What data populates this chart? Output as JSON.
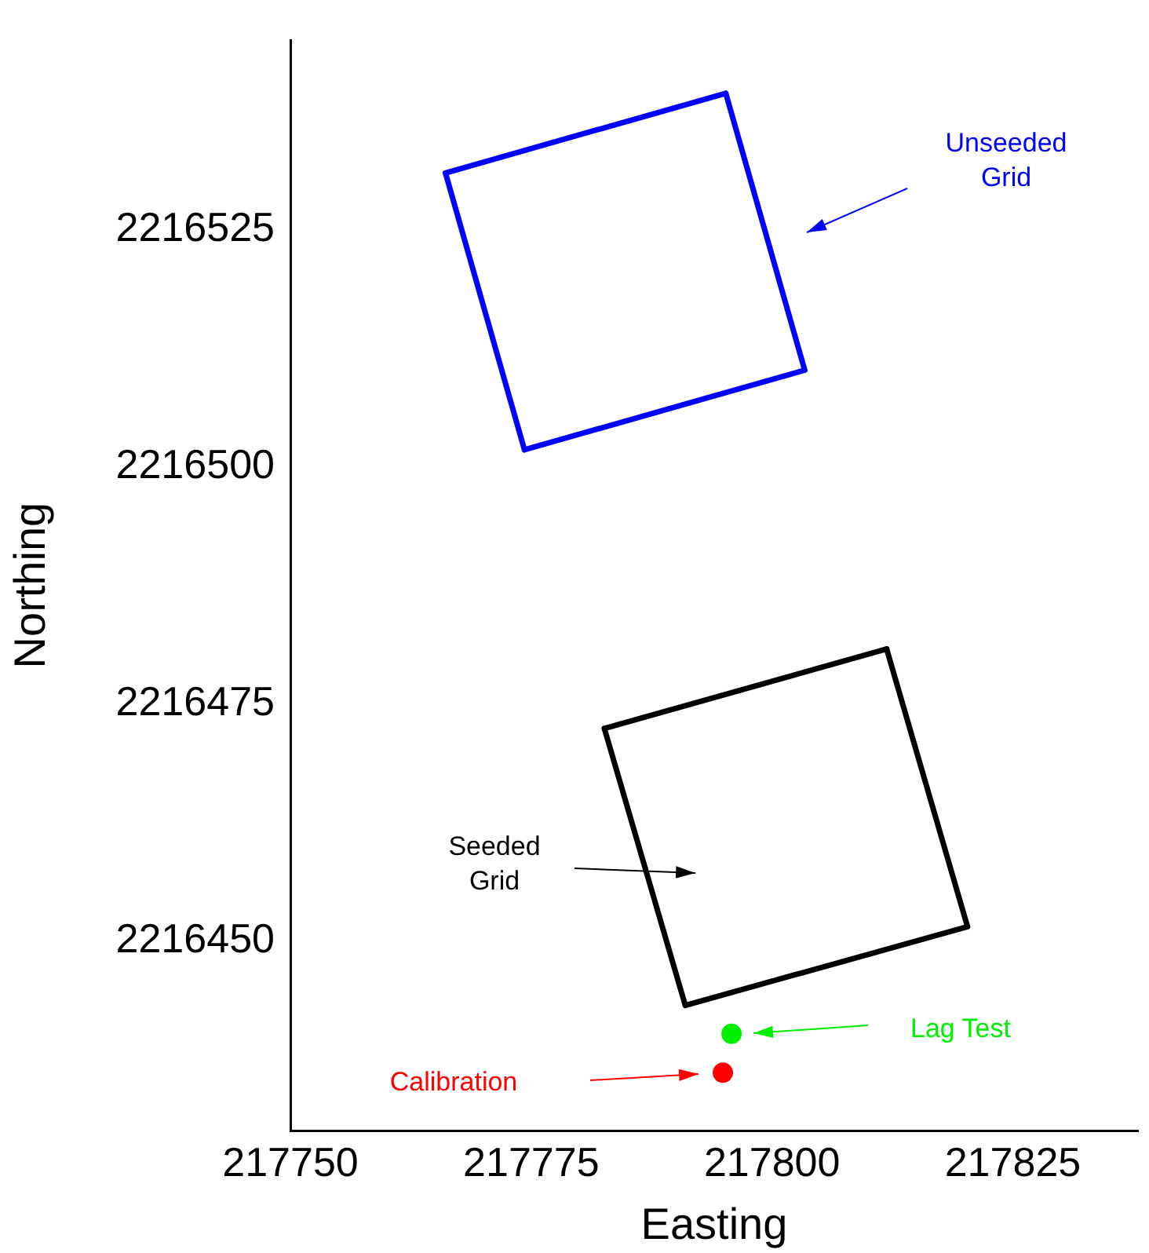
{
  "chart_data": {
    "type": "line",
    "xlabel": "Easting",
    "ylabel": "Northing",
    "xlim": [
      217750,
      217838
    ],
    "ylim": [
      2216430,
      2216545
    ],
    "xticks": [
      217750,
      217775,
      217800,
      217825
    ],
    "yticks": [
      2216450,
      2216475,
      2216500,
      2216525
    ],
    "grid": false,
    "legend": false,
    "series": [
      {
        "color": "#0000ff",
        "x": [
          217766.1,
          217795.2
        ],
        "values": [
          2216531,
          2216539.4
        ]
      },
      {
        "color": "#0000ff",
        "x": [
          217795.2,
          217803.4
        ],
        "values": [
          2216539.4,
          2216510.2
        ]
      },
      {
        "color": "#0000ff",
        "x": [
          217774.3,
          217803.4
        ],
        "values": [
          2216501.8,
          2216510.2
        ]
      },
      {
        "color": "#0000ff",
        "x": [
          217766.1,
          217774.3
        ],
        "values": [
          2216531,
          2216501.8
        ]
      },
      {
        "color": "#000000",
        "x": [
          217782.6,
          217811.9
        ],
        "values": [
          2216472.4,
          2216480.8
        ]
      },
      {
        "color": "#000000",
        "x": [
          217811.9,
          217820.3
        ],
        "values": [
          2216480.8,
          2216451.5
        ]
      },
      {
        "color": "#000000",
        "x": [
          217791,
          217820.3
        ],
        "values": [
          2216443.2,
          2216451.5
        ]
      },
      {
        "color": "#000000",
        "x": [
          217782.6,
          217791
        ],
        "values": [
          2216472.4,
          2216443.2
        ]
      },
      {
        "type": "scatter",
        "color": "#00ee00",
        "marker": "circle",
        "x": [
          217795.8
        ],
        "values": [
          2216440.2
        ]
      },
      {
        "type": "scatter",
        "color": "#ff0000",
        "marker": "circle",
        "x": [
          217794.9
        ],
        "values": [
          2216436.1
        ]
      }
    ],
    "annotations": [
      "Unseeded\nGrid",
      "Seeded\nGrid",
      "Lag Test",
      "Calibration"
    ]
  }
}
